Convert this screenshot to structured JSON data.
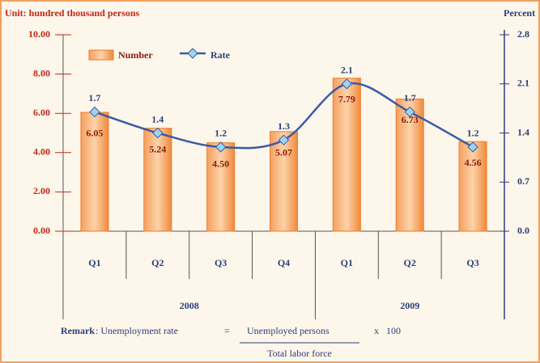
{
  "chart_data": {
    "type": "bar_line",
    "y_label": "Unit: hundred thousand persons",
    "y2_label": "Percent",
    "groups": [
      {
        "name": "2008",
        "categories": [
          "Q1",
          "Q2",
          "Q3",
          "Q4"
        ]
      },
      {
        "name": "2009",
        "categories": [
          "Q1",
          "Q2",
          "Q3"
        ]
      }
    ],
    "series": [
      {
        "name": "Number",
        "color": "#f07a2a",
        "values": [
          6.05,
          5.24,
          4.5,
          5.07,
          7.79,
          6.73,
          4.56
        ],
        "value_labels": [
          "6.05",
          "5.24",
          "4.50",
          "5.07",
          "7.79",
          "6.73",
          "4.56"
        ]
      },
      {
        "name": "Rate",
        "color": "#3a5ba8",
        "axis": "y2",
        "values": [
          1.7,
          1.4,
          1.2,
          1.3,
          2.1,
          1.7,
          1.2
        ]
      }
    ],
    "ylim": [
      0,
      10
    ],
    "yticks": [
      {
        "value": 0,
        "label": "0.00"
      },
      {
        "value": 2,
        "label": "2.00"
      },
      {
        "value": 4,
        "label": "4.00"
      },
      {
        "value": 6,
        "label": "6.00"
      },
      {
        "value": 8,
        "label": "8.00"
      },
      {
        "value": 10,
        "label": "10.00"
      }
    ],
    "y2lim": [
      0,
      2.8
    ],
    "y2ticks": [
      {
        "value": 0,
        "label": "0.0"
      },
      0.7,
      1.4,
      2.1,
      2.8
    ],
    "remark": {
      "label": "Remark",
      "lhs": ": Unemployment rate",
      "equals": "=",
      "numerator": "Unemployed persons",
      "multiplier": "x   100",
      "denominator": "Total labor force"
    }
  }
}
